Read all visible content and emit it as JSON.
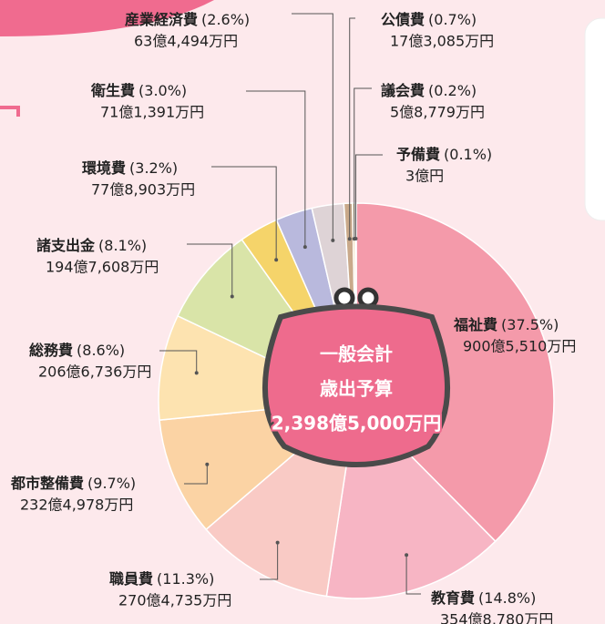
{
  "chart_data": {
    "type": "pie",
    "categories": [
      "福祉費",
      "教育費",
      "職員費",
      "都市整備費",
      "総務費",
      "諸支出金",
      "環境費",
      "衛生費",
      "産業経済費",
      "公債費",
      "議会費",
      "予備費"
    ],
    "values": [
      37.5,
      14.8,
      11.3,
      9.7,
      8.6,
      8.1,
      3.2,
      3.0,
      2.6,
      0.7,
      0.2,
      0.1
    ],
    "value_labels": [
      "(37.5%)",
      "(14.8%)",
      "(11.3%)",
      "(9.7%)",
      "(8.6%)",
      "(8.1%)",
      "(3.2%)",
      "(3.0%)",
      "(2.6%)",
      "(0.7%)",
      "(0.2%)",
      "(0.1%)"
    ],
    "amounts": [
      "900億5,510万円",
      "354億8,780万円",
      "270億4,735万円",
      "232億4,978万円",
      "206億6,736万円",
      "194億7,608万円",
      "77億8,903万円",
      "71億1,391万円",
      "63億4,494万円",
      "17億3,085万円",
      "5億8,779万円",
      "3億円"
    ],
    "colors": [
      "#f49aaa",
      "#f7b5c4",
      "#f9cac5",
      "#fbd3a4",
      "#fde3b0",
      "#d9e4a8",
      "#f5d46a",
      "#b9b9dd",
      "#ded3d6",
      "#c9a98a",
      "#e6c07a",
      "#a89878"
    ],
    "center_labels": [
      "一般会計",
      "歳出予算",
      "2,398億5,000万円"
    ]
  }
}
